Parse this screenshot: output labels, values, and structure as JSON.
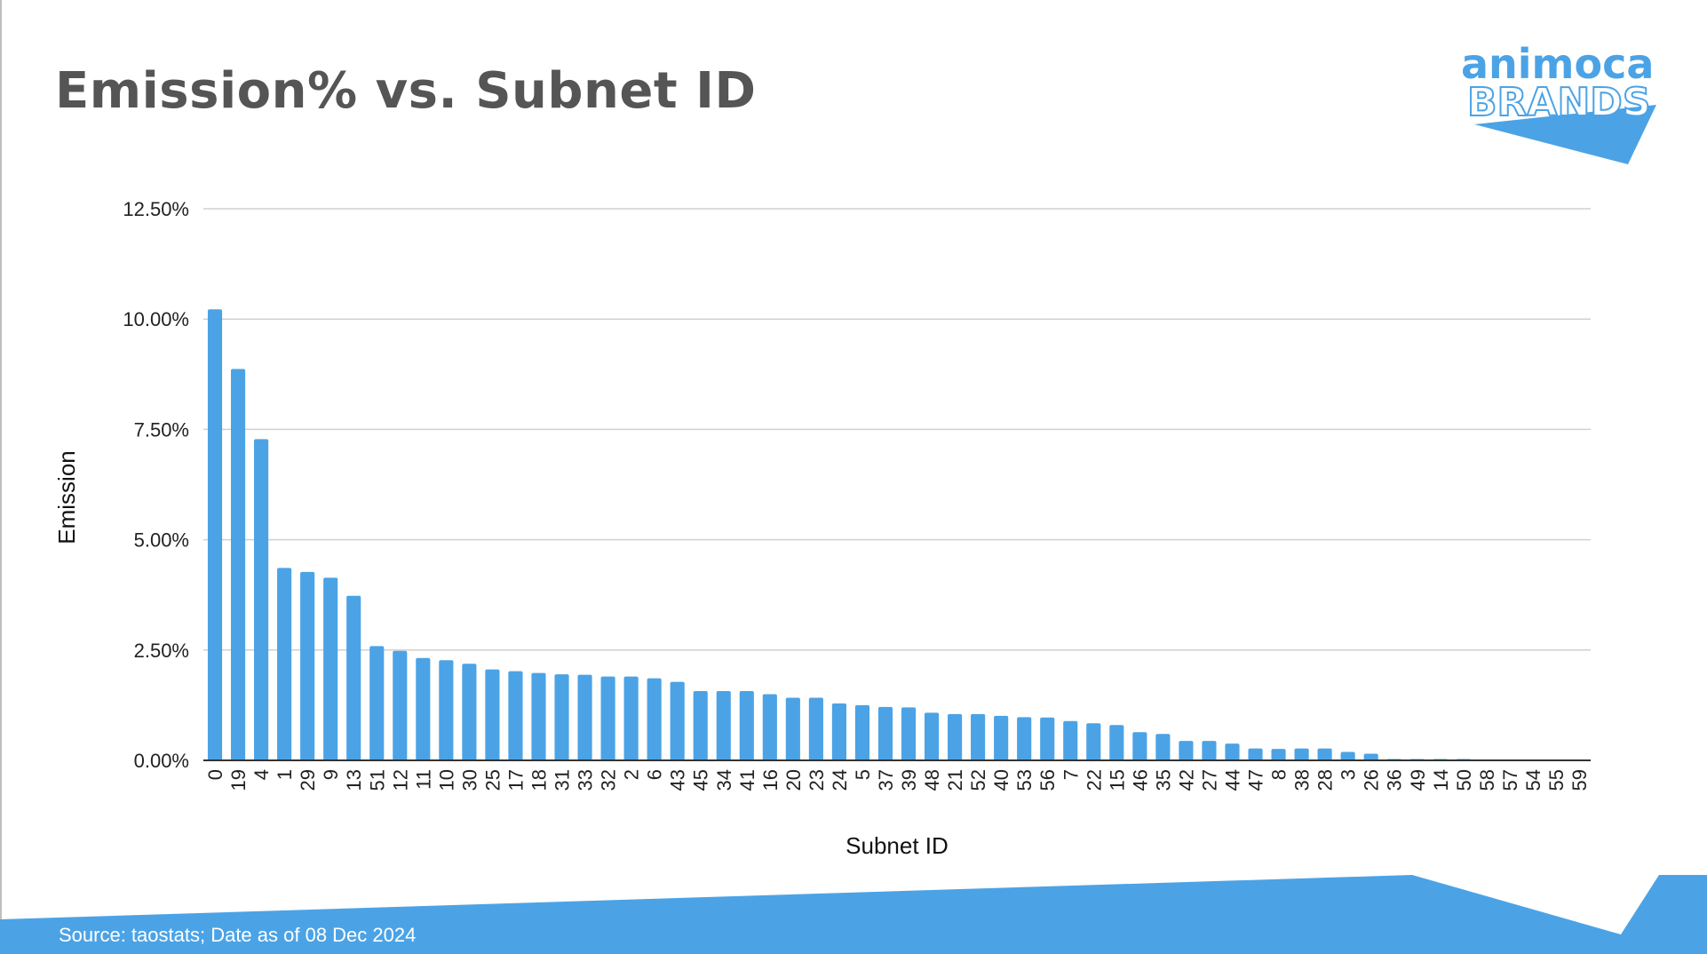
{
  "slide": {
    "title": "Emission% vs. Subnet ID",
    "source": "Source: taostats; Date as of 08 Dec 2024",
    "logo_line1": "animoca",
    "logo_line2": "BRANDS",
    "accent_color": "#4ba3e6"
  },
  "chart_data": {
    "type": "bar",
    "title": "",
    "xlabel": "Subnet ID",
    "ylabel": "Emission",
    "ylim": [
      0,
      12.5
    ],
    "y_ticks": [
      "0.00%",
      "2.50%",
      "5.00%",
      "7.50%",
      "10.00%",
      "12.50%"
    ],
    "y_tick_values": [
      0,
      2.5,
      5,
      7.5,
      10,
      12.5
    ],
    "grid": true,
    "legend": "none",
    "bar_color": "#4ba3e6",
    "categories": [
      "0",
      "19",
      "4",
      "1",
      "29",
      "9",
      "13",
      "51",
      "12",
      "11",
      "10",
      "30",
      "25",
      "17",
      "18",
      "31",
      "33",
      "32",
      "2",
      "6",
      "43",
      "45",
      "34",
      "41",
      "16",
      "20",
      "23",
      "24",
      "5",
      "37",
      "39",
      "48",
      "21",
      "52",
      "40",
      "53",
      "56",
      "7",
      "22",
      "15",
      "46",
      "35",
      "42",
      "27",
      "44",
      "47",
      "8",
      "38",
      "28",
      "3",
      "26",
      "36",
      "49",
      "14",
      "50",
      "58",
      "57",
      "54",
      "55",
      "59"
    ],
    "values": [
      10.22,
      8.87,
      7.28,
      4.36,
      4.27,
      4.14,
      3.73,
      2.59,
      2.48,
      2.32,
      2.27,
      2.19,
      2.06,
      2.02,
      1.98,
      1.95,
      1.94,
      1.9,
      1.9,
      1.86,
      1.78,
      1.57,
      1.57,
      1.57,
      1.5,
      1.42,
      1.42,
      1.29,
      1.25,
      1.21,
      1.2,
      1.08,
      1.05,
      1.05,
      1.01,
      0.98,
      0.97,
      0.89,
      0.84,
      0.8,
      0.64,
      0.6,
      0.44,
      0.44,
      0.38,
      0.27,
      0.26,
      0.27,
      0.27,
      0.19,
      0.15,
      0.03,
      0.03,
      0.03,
      0.03,
      0,
      0,
      0,
      0,
      0
    ]
  }
}
